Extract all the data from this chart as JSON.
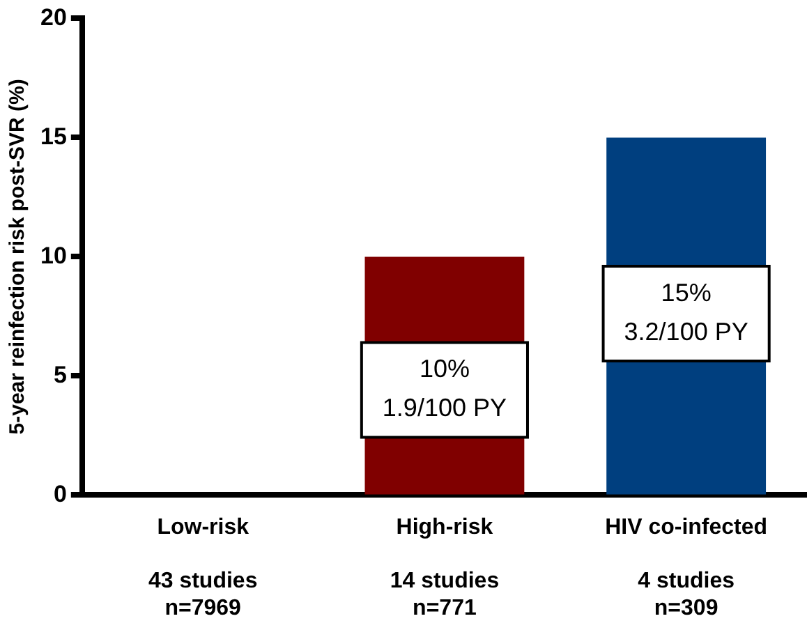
{
  "chart_data": {
    "type": "bar",
    "ylabel": "5-year reinfection risk post-SVR (%)",
    "categories": [
      "Low-risk\n\n43 studies\nn=7969",
      "High-risk\n\n14 studies\nn=771",
      "HIV co-infected\n\n4 studies\nn=309"
    ],
    "values": [
      0,
      10,
      15
    ],
    "colors": [
      "#800000",
      "#800000",
      "#003f7f"
    ],
    "value_labels": [
      null,
      "10%\n1.9/100 PY",
      "15%\n3.2/100 PY"
    ],
    "ylim": [
      0,
      20
    ],
    "yticks": [
      0,
      5,
      10,
      15,
      20
    ],
    "grid": false,
    "legend": false
  }
}
